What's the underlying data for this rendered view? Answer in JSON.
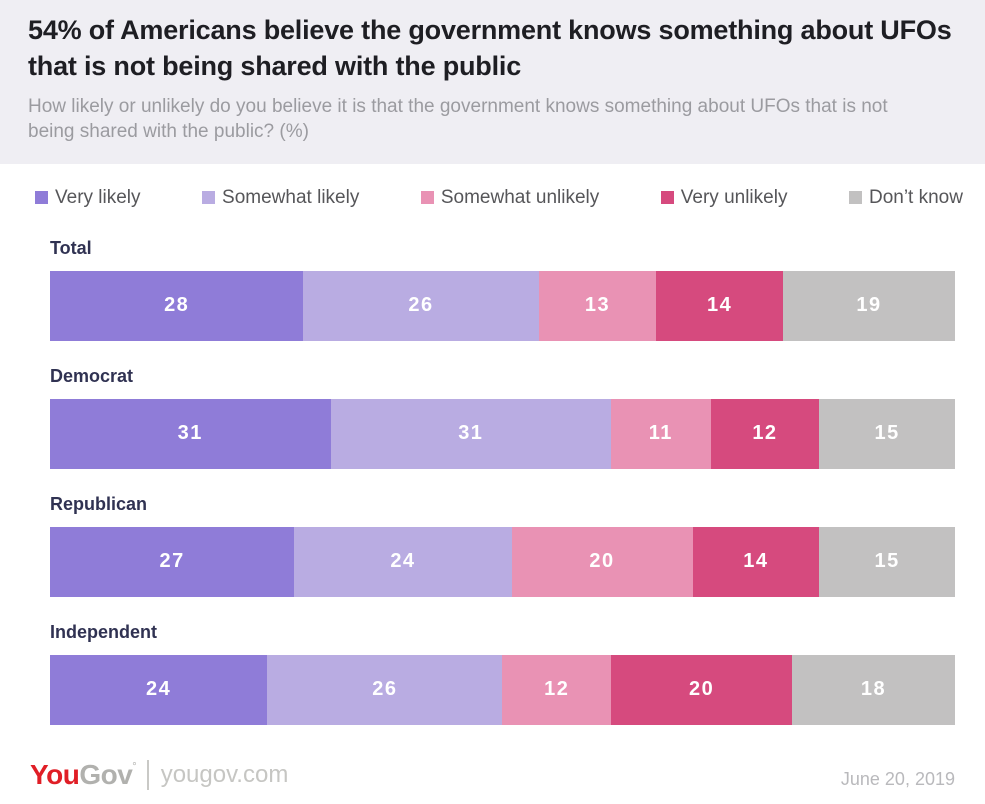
{
  "header": {
    "title": "54% of Americans believe the government knows something about UFOs that is not being shared with the public",
    "subtitle": "How likely or unlikely do you believe it is that the government knows something about UFOs that is not being shared with the public? (%)"
  },
  "chart_data": {
    "type": "bar",
    "stacked": true,
    "orientation": "horizontal",
    "unit": "percent",
    "xlim": [
      0,
      100
    ],
    "grid": false,
    "legend_position": "top",
    "value_labels": "inside, white, bold",
    "categories": [
      "Total",
      "Democrat",
      "Republican",
      "Independent"
    ],
    "series": [
      {
        "name": "Very likely",
        "color": "#8f7cd8",
        "values": [
          28,
          31,
          27,
          24
        ]
      },
      {
        "name": "Somewhat likely",
        "color": "#b9ace2",
        "values": [
          26,
          31,
          24,
          26
        ]
      },
      {
        "name": "Somewhat unlikely",
        "color": "#e992b4",
        "values": [
          13,
          11,
          20,
          12
        ]
      },
      {
        "name": "Very unlikely",
        "color": "#d64a7e",
        "values": [
          14,
          12,
          14,
          20
        ]
      },
      {
        "name": "Don’t know",
        "color": "#c2c1c1",
        "values": [
          19,
          15,
          15,
          18
        ]
      }
    ]
  },
  "footer": {
    "logo_you": "You",
    "logo_gov": "Gov",
    "logo_tm": "°",
    "site": "yougov.com",
    "date": "June 20, 2019"
  }
}
